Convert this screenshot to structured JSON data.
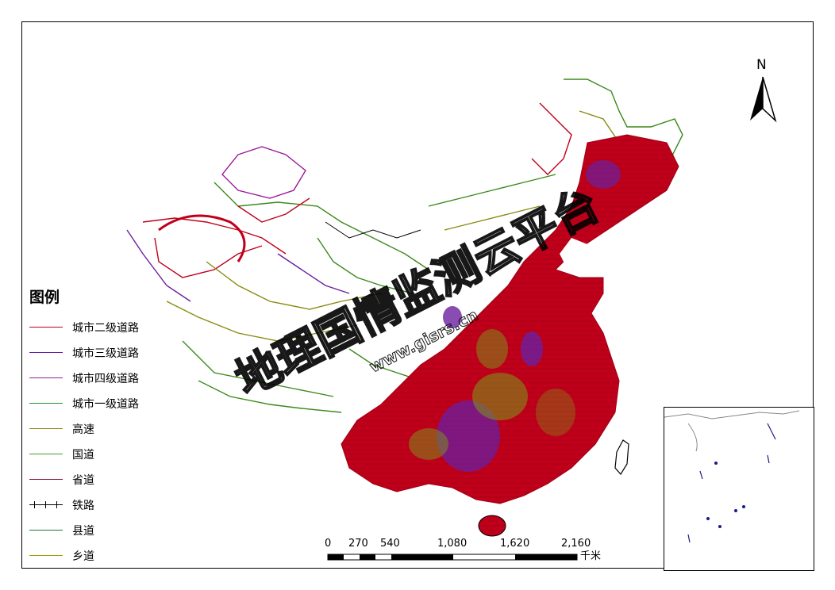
{
  "legend": {
    "title": "图例",
    "items": [
      {
        "label": "城市二级道路",
        "color": "#c0001a",
        "style": "line"
      },
      {
        "label": "城市三级道路",
        "color": "#6a1fa0",
        "style": "line"
      },
      {
        "label": "城市四级道路",
        "color": "#9a1a9a",
        "style": "line"
      },
      {
        "label": "城市一级道路",
        "color": "#2a8a2a",
        "style": "line"
      },
      {
        "label": "高速",
        "color": "#8a8a10",
        "style": "line"
      },
      {
        "label": "国道",
        "color": "#4a9a2a",
        "style": "line"
      },
      {
        "label": "省道",
        "color": "#8a1a3a",
        "style": "line"
      },
      {
        "label": "铁路",
        "color": "#000000",
        "style": "railway"
      },
      {
        "label": "县道",
        "color": "#1a7a3a",
        "style": "line"
      },
      {
        "label": "乡道",
        "color": "#a0a000",
        "style": "line"
      }
    ]
  },
  "north_arrow": {
    "label": "N"
  },
  "scale_bar": {
    "labels": [
      "0",
      "270",
      "540",
      "1,080",
      "1,620",
      "2,160"
    ],
    "unit": "千米"
  },
  "colors": {
    "dominant": "#c0001a",
    "purple": "#6a1fa0",
    "green": "#3a8a1a",
    "olive": "#9a9a10"
  },
  "watermark": "地理国情监测云平台 www.gisrs.cn"
}
